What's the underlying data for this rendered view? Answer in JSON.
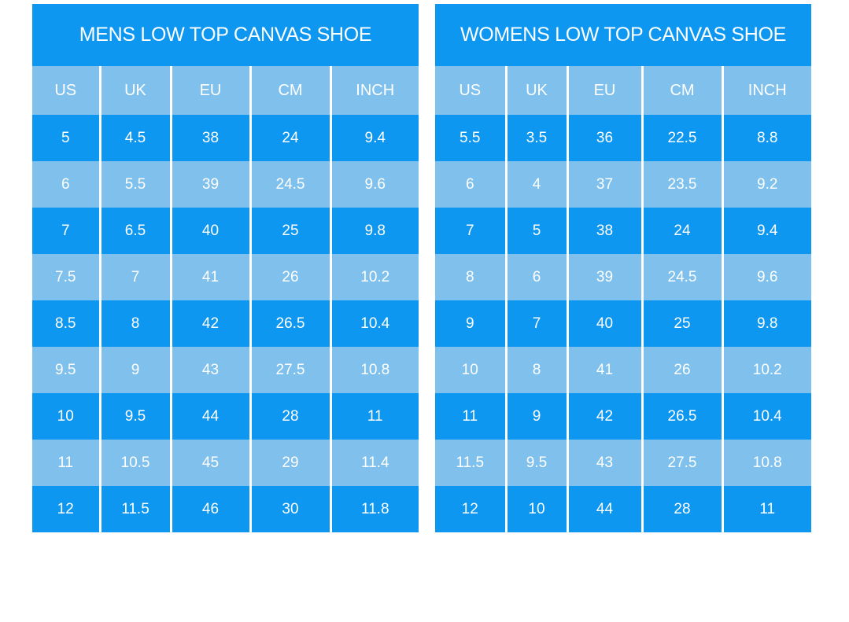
{
  "colors": {
    "dark_blue": "#0D97F1",
    "light_blue": "#7FC1EC",
    "separator": "#FFFFFF",
    "text": "#FFFFFF",
    "background": "#FFFFFF"
  },
  "chart_data": [
    {
      "type": "table",
      "title": "MENS LOW TOP CANVAS SHOE",
      "columns": [
        "US",
        "UK",
        "EU",
        "CM",
        "INCH"
      ],
      "rows": [
        [
          "5",
          "4.5",
          "38",
          "24",
          "9.4"
        ],
        [
          "6",
          "5.5",
          "39",
          "24.5",
          "9.6"
        ],
        [
          "7",
          "6.5",
          "40",
          "25",
          "9.8"
        ],
        [
          "7.5",
          "7",
          "41",
          "26",
          "10.2"
        ],
        [
          "8.5",
          "8",
          "42",
          "26.5",
          "10.4"
        ],
        [
          "9.5",
          "9",
          "43",
          "27.5",
          "10.8"
        ],
        [
          "10",
          "9.5",
          "44",
          "28",
          "11"
        ],
        [
          "11",
          "10.5",
          "45",
          "29",
          "11.4"
        ],
        [
          "12",
          "11.5",
          "46",
          "30",
          "11.8"
        ]
      ],
      "layout_hints": {
        "first_row_shade": "dark",
        "stripe_pattern": "alternating dark/light"
      }
    },
    {
      "type": "table",
      "title": "WOMENS LOW TOP CANVAS SHOE",
      "columns": [
        "US",
        "UK",
        "EU",
        "CM",
        "INCH"
      ],
      "rows": [
        [
          "5.5",
          "3.5",
          "36",
          "22.5",
          "8.8"
        ],
        [
          "6",
          "4",
          "37",
          "23.5",
          "9.2"
        ],
        [
          "7",
          "5",
          "38",
          "24",
          "9.4"
        ],
        [
          "8",
          "6",
          "39",
          "24.5",
          "9.6"
        ],
        [
          "9",
          "7",
          "40",
          "25",
          "9.8"
        ],
        [
          "10",
          "8",
          "41",
          "26",
          "10.2"
        ],
        [
          "11",
          "9",
          "42",
          "26.5",
          "10.4"
        ],
        [
          "11.5",
          "9.5",
          "43",
          "27.5",
          "10.8"
        ],
        [
          "12",
          "10",
          "44",
          "28",
          "11"
        ]
      ],
      "layout_hints": {
        "first_row_shade": "dark",
        "stripe_pattern": "alternating dark/light"
      }
    }
  ]
}
